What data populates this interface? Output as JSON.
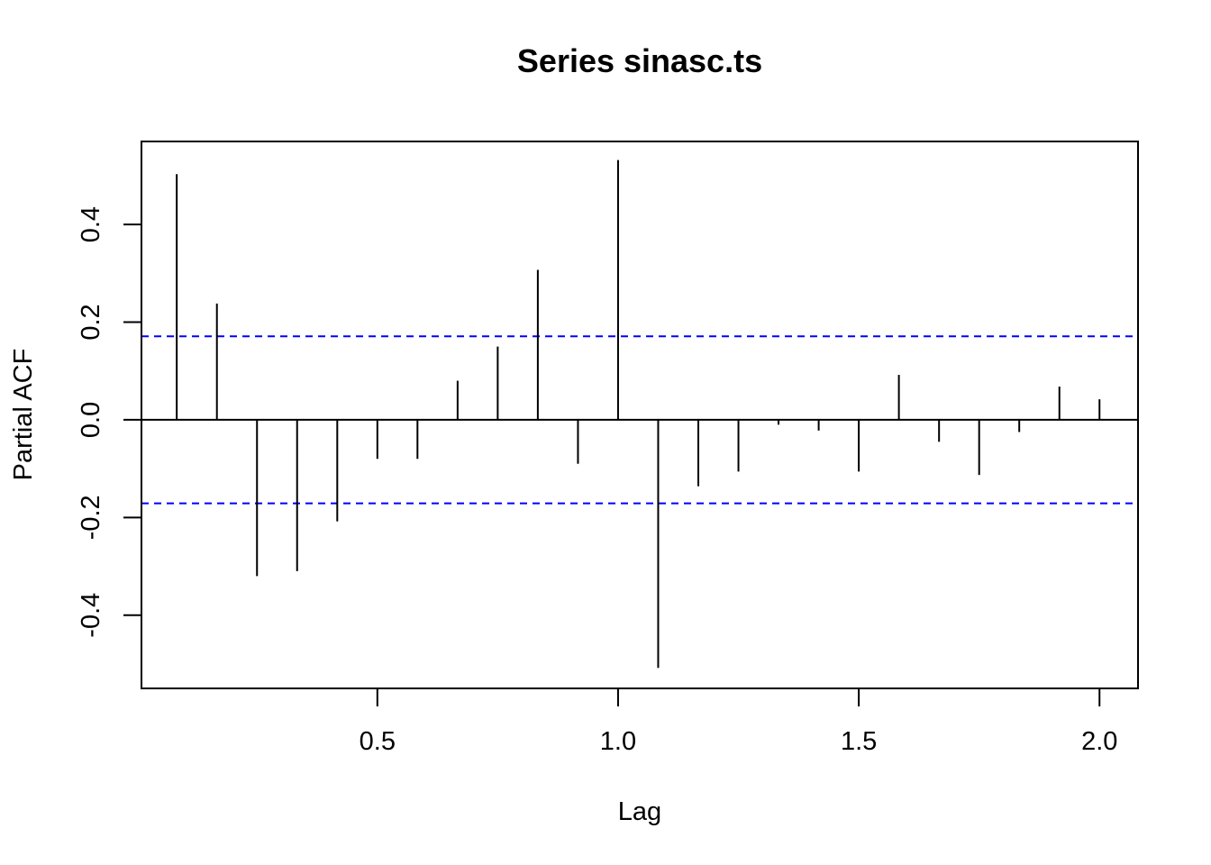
{
  "chart_data": {
    "type": "bar",
    "title": "Series  sinasc.ts",
    "xlabel": "Lag",
    "ylabel": "Partial ACF",
    "xlim": [
      0.01,
      2.08
    ],
    "ylim": [
      -0.55,
      0.57
    ],
    "x_ticks": [
      "0.5",
      "1.0",
      "1.5",
      "2.0"
    ],
    "y_ticks": [
      "-0.4",
      "-0.2",
      "0.0",
      "0.2",
      "0.4"
    ],
    "confidence_bound": 0.171,
    "confidence_color": "#0000ff",
    "bar_color": "#000000",
    "grid": false,
    "lags": [
      0.0833,
      0.1667,
      0.25,
      0.3333,
      0.4167,
      0.5,
      0.5833,
      0.6667,
      0.75,
      0.8333,
      0.9167,
      1.0,
      1.0833,
      1.1667,
      1.25,
      1.3333,
      1.4167,
      1.5,
      1.5833,
      1.6667,
      1.75,
      1.8333,
      1.9167,
      2.0
    ],
    "values": [
      0.503,
      0.238,
      -0.32,
      -0.31,
      -0.208,
      -0.08,
      -0.08,
      0.08,
      0.15,
      0.307,
      -0.09,
      0.532,
      -0.508,
      -0.136,
      -0.106,
      -0.01,
      -0.022,
      -0.106,
      0.092,
      -0.045,
      -0.113,
      -0.025,
      0.068,
      0.042
    ]
  }
}
